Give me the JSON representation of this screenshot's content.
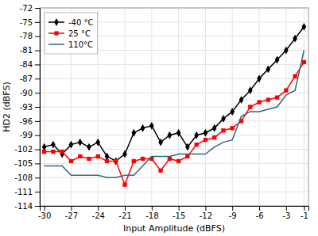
{
  "chart_data": {
    "type": "line",
    "xlabel": "Input Amplitude (dBFS)",
    "ylabel": "HD2 (dBFS)",
    "x": [
      -30,
      -29,
      -28,
      -27,
      -26,
      -25,
      -24,
      -23,
      -22,
      -21,
      -20,
      -19,
      -18,
      -17,
      -16,
      -15,
      -14,
      -13,
      -12,
      -11,
      -10,
      -9,
      -8,
      -7,
      -6,
      -5,
      -4,
      -3,
      -2,
      -1
    ],
    "series": [
      {
        "name": "-40 °C",
        "color": "#000000",
        "marker": "diamond",
        "values": [
          -101.5,
          -101.0,
          -103.0,
          -101.0,
          -100.5,
          -101.5,
          -100.5,
          -103.5,
          -104.5,
          -103.0,
          -98.5,
          -97.5,
          -97.0,
          -100.5,
          -99.0,
          -98.5,
          -101.5,
          -99.0,
          -98.5,
          -97.5,
          -95.5,
          -94.0,
          -91.5,
          -89.5,
          -87.0,
          -85.0,
          -83.0,
          -81.0,
          -78.5,
          -76.0
        ]
      },
      {
        "name": "25 °C",
        "color": "#ff0000",
        "marker": "square",
        "values": [
          -102.5,
          -102.5,
          -102.5,
          -104.5,
          -103.5,
          -104.0,
          -103.5,
          -104.5,
          -104.5,
          -109.5,
          -104.5,
          -104.0,
          -104.0,
          -106.5,
          -104.0,
          -104.5,
          -103.5,
          -101.0,
          -100.0,
          -99.5,
          -98.0,
          -97.5,
          -96.0,
          -93.0,
          -92.0,
          -91.5,
          -91.0,
          -89.5,
          -86.5,
          -83.5
        ]
      },
      {
        "name": "110°C",
        "color": "#336677",
        "values": [
          -105.5,
          -105.5,
          -105.5,
          -107.5,
          -107.5,
          -107.5,
          -107.5,
          -108.0,
          -108.0,
          -107.5,
          -107.5,
          -105.5,
          -103.5,
          -103.5,
          -103.5,
          -103.0,
          -103.0,
          -103.0,
          -103.0,
          -101.5,
          -100.5,
          -100.0,
          -95.0,
          -94.0,
          -94.0,
          -93.5,
          -93.0,
          -90.5,
          -89.5,
          -81.0
        ]
      }
    ],
    "xlim": [
      -30.5,
      -0.5
    ],
    "ylim": [
      -114,
      -72
    ],
    "xticks": [
      -30,
      -27,
      -24,
      -21,
      -18,
      -15,
      -12,
      -9,
      -6,
      -3,
      -1
    ],
    "yticks": [
      -114,
      -111,
      -108,
      -105,
      -102,
      -99,
      -96,
      -93,
      -90,
      -87,
      -84,
      -81,
      -78,
      -75,
      -72
    ],
    "grid": true,
    "legend": "upper left"
  }
}
